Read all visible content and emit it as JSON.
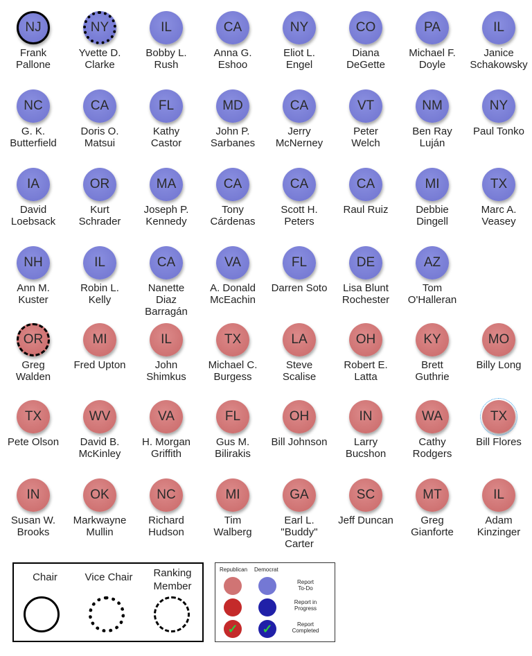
{
  "members": [
    {
      "state": "NJ",
      "name": "Frank\nPallone",
      "party": "dem",
      "role": "chair"
    },
    {
      "state": "NY",
      "name": "Yvette D.\nClarke",
      "party": "dem",
      "role": "vice"
    },
    {
      "state": "IL",
      "name": "Bobby L.\nRush",
      "party": "dem"
    },
    {
      "state": "CA",
      "name": "Anna G.\nEshoo",
      "party": "dem"
    },
    {
      "state": "NY",
      "name": "Eliot L.\nEngel",
      "party": "dem"
    },
    {
      "state": "CO",
      "name": "Diana\nDeGette",
      "party": "dem"
    },
    {
      "state": "PA",
      "name": "Michael F.\nDoyle",
      "party": "dem"
    },
    {
      "state": "IL",
      "name": "Janice\nSchakowsky",
      "party": "dem"
    },
    {
      "state": "NC",
      "name": "G. K.\nButterfield",
      "party": "dem"
    },
    {
      "state": "CA",
      "name": "Doris O.\nMatsui",
      "party": "dem"
    },
    {
      "state": "FL",
      "name": "Kathy\nCastor",
      "party": "dem"
    },
    {
      "state": "MD",
      "name": "John P.\nSarbanes",
      "party": "dem"
    },
    {
      "state": "CA",
      "name": "Jerry\nMcNerney",
      "party": "dem"
    },
    {
      "state": "VT",
      "name": "Peter\nWelch",
      "party": "dem"
    },
    {
      "state": "NM",
      "name": "Ben Ray\nLuján",
      "party": "dem"
    },
    {
      "state": "NY",
      "name": "Paul Tonko",
      "party": "dem"
    },
    {
      "state": "IA",
      "name": "David\nLoebsack",
      "party": "dem"
    },
    {
      "state": "OR",
      "name": "Kurt\nSchrader",
      "party": "dem"
    },
    {
      "state": "MA",
      "name": "Joseph P.\nKennedy",
      "party": "dem"
    },
    {
      "state": "CA",
      "name": "Tony\nCárdenas",
      "party": "dem"
    },
    {
      "state": "CA",
      "name": "Scott H.\nPeters",
      "party": "dem"
    },
    {
      "state": "CA",
      "name": "Raul Ruiz",
      "party": "dem"
    },
    {
      "state": "MI",
      "name": "Debbie\nDingell",
      "party": "dem"
    },
    {
      "state": "TX",
      "name": "Marc A.\nVeasey",
      "party": "dem"
    },
    {
      "state": "NH",
      "name": "Ann M.\nKuster",
      "party": "dem"
    },
    {
      "state": "IL",
      "name": "Robin L.\nKelly",
      "party": "dem"
    },
    {
      "state": "CA",
      "name": "Nanette\nDiaz\nBarragán",
      "party": "dem"
    },
    {
      "state": "VA",
      "name": "A. Donald\nMcEachin",
      "party": "dem"
    },
    {
      "state": "FL",
      "name": "Darren Soto",
      "party": "dem"
    },
    {
      "state": "DE",
      "name": "Lisa Blunt\nRochester",
      "party": "dem"
    },
    {
      "state": "AZ",
      "name": "Tom\nO'Halleran",
      "party": "dem"
    },
    {
      "state": "OR",
      "name": "Greg\nWalden",
      "party": "rep",
      "role": "ranking"
    },
    {
      "state": "MI",
      "name": "Fred Upton",
      "party": "rep"
    },
    {
      "state": "IL",
      "name": "John\nShimkus",
      "party": "rep"
    },
    {
      "state": "TX",
      "name": "Michael C.\nBurgess",
      "party": "rep"
    },
    {
      "state": "LA",
      "name": "Steve\nScalise",
      "party": "rep"
    },
    {
      "state": "OH",
      "name": "Robert E.\nLatta",
      "party": "rep"
    },
    {
      "state": "KY",
      "name": "Brett\nGuthrie",
      "party": "rep"
    },
    {
      "state": "MO",
      "name": "Billy Long",
      "party": "rep"
    },
    {
      "state": "TX",
      "name": "Pete Olson",
      "party": "rep"
    },
    {
      "state": "WV",
      "name": "David B.\nMcKinley",
      "party": "rep"
    },
    {
      "state": "VA",
      "name": "H. Morgan\nGriffith",
      "party": "rep"
    },
    {
      "state": "FL",
      "name": "Gus M.\nBilirakis",
      "party": "rep"
    },
    {
      "state": "OH",
      "name": "Bill Johnson",
      "party": "rep"
    },
    {
      "state": "IN",
      "name": "Larry\nBucshon",
      "party": "rep"
    },
    {
      "state": "WA",
      "name": "Cathy\nRodgers",
      "party": "rep"
    },
    {
      "state": "TX",
      "name": "Bill Flores",
      "party": "rep",
      "selected": true
    },
    {
      "state": "IN",
      "name": "Susan W.\nBrooks",
      "party": "rep"
    },
    {
      "state": "OK",
      "name": "Markwayne\nMullin",
      "party": "rep"
    },
    {
      "state": "NC",
      "name": "Richard\nHudson",
      "party": "rep"
    },
    {
      "state": "MI",
      "name": "Tim\nWalberg",
      "party": "rep"
    },
    {
      "state": "GA",
      "name": "Earl L.\n\"Buddy\"\nCarter",
      "party": "rep"
    },
    {
      "state": "SC",
      "name": "Jeff Duncan",
      "party": "rep"
    },
    {
      "state": "MT",
      "name": "Greg\nGianforte",
      "party": "rep"
    },
    {
      "state": "IL",
      "name": "Adam\nKinzinger",
      "party": "rep"
    }
  ],
  "role_legend": {
    "chair": "Chair",
    "vice_chair": "Vice Chair",
    "ranking_member": "Ranking\nMember"
  },
  "status_legend": {
    "republican": "Republican",
    "democrat": "Democrat",
    "todo": "Report\nTo-Do",
    "in_progress": "Report in\nProgress",
    "completed": "Report\nCompleted",
    "checkmark": "✓"
  },
  "colors": {
    "democrat": "#7478d4",
    "republican": "#d07474",
    "democrat_progress": "#2020a8",
    "republican_progress": "#c42a2a"
  }
}
